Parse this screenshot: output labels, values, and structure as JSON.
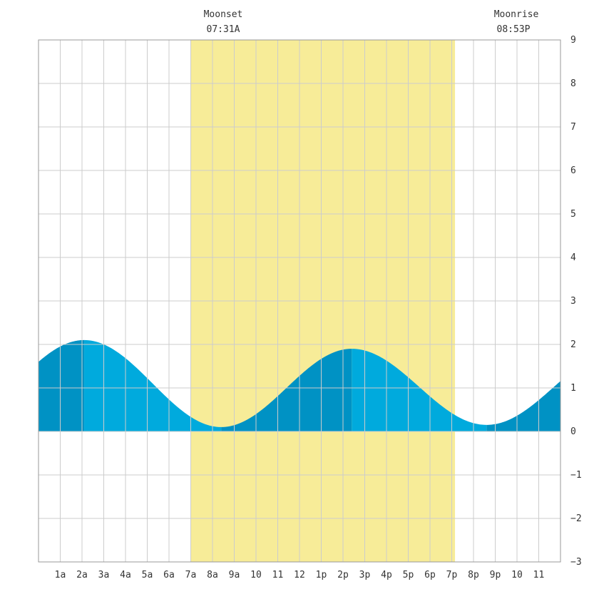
{
  "chart_data": {
    "type": "area",
    "title": "",
    "xlabel": "",
    "ylabel": "",
    "x_range_hours": [
      0,
      24
    ],
    "ylim": [
      -3,
      9
    ],
    "y_ticks": [
      9,
      8,
      7,
      6,
      5,
      4,
      3,
      2,
      1,
      0,
      -1,
      -2,
      -3
    ],
    "x_tick_labels": [
      "1a",
      "2a",
      "3a",
      "4a",
      "5a",
      "6a",
      "7a",
      "8a",
      "9a",
      "10",
      "11",
      "12",
      "1p",
      "2p",
      "3p",
      "4p",
      "5p",
      "6p",
      "7p",
      "8p",
      "9p",
      "10",
      "11"
    ],
    "grid": true,
    "tide_extremes": [
      {
        "hour": 2.1,
        "height": 2.1,
        "type": "high"
      },
      {
        "hour": 8.4,
        "height": 0.1,
        "type": "low"
      },
      {
        "hour": 14.4,
        "height": 1.9,
        "type": "high"
      },
      {
        "hour": 20.6,
        "height": 0.15,
        "type": "low"
      }
    ],
    "tide_start": {
      "hour": 0,
      "height": 1.55
    },
    "tide_end": {
      "hour": 24,
      "height": 1.25
    },
    "moon_shade": {
      "start_hour": 7.0,
      "end_hour": 19.15
    },
    "colors": {
      "moon_shade": "#f7ec98",
      "tide_light": "#00aadd",
      "tide_dark": "#0092c4",
      "background": "#ffffff"
    }
  },
  "annotations": {
    "moonset": {
      "label": "Moonset",
      "time": "07:31A",
      "hour": 7.52
    },
    "moonrise": {
      "label": "Moonrise",
      "time": "08:53P",
      "hour": 20.88
    }
  }
}
